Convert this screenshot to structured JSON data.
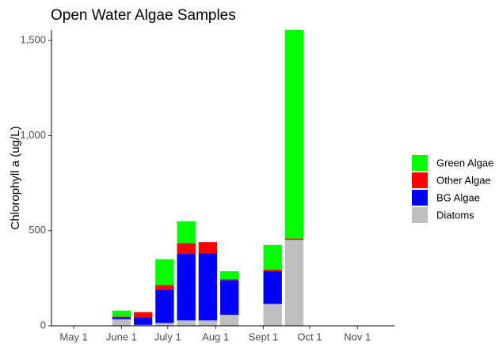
{
  "chart_data": {
    "type": "bar",
    "stacked": true,
    "title": "Open Water Algae Samples",
    "y_label": "Chlorophyll a (ug/L)",
    "x": [
      31,
      45,
      59,
      73,
      87,
      101,
      129,
      143
    ],
    "bar_width": 12,
    "xlim": [
      -14.4,
      208
    ],
    "xticks": [
      {
        "value": 0,
        "label": "May 1"
      },
      {
        "value": 31,
        "label": "June 1"
      },
      {
        "value": 61,
        "label": "July 1"
      },
      {
        "value": 92,
        "label": "Aug 1"
      },
      {
        "value": 123,
        "label": "Sept 1"
      },
      {
        "value": 153,
        "label": "Oct 1"
      },
      {
        "value": 184,
        "label": "Nov 1"
      }
    ],
    "ylim": [
      0,
      1555
    ],
    "yticks": [
      0,
      500,
      {
        "value": 1000,
        "label": "1,000"
      },
      {
        "value": 1500,
        "label": "1,500"
      }
    ],
    "grid": false,
    "legend": "right",
    "series": [
      {
        "name": "Diatoms",
        "color": "#bebebe",
        "values": [
          35,
          5,
          15,
          28,
          28,
          58,
          115,
          452
        ]
      },
      {
        "name": "BG Algae",
        "color": "#0000ff",
        "values": [
          10,
          40,
          175,
          350,
          354,
          182,
          172,
          1
        ]
      },
      {
        "name": "Other Algae",
        "color": "#ff0000",
        "values": [
          3,
          27,
          25,
          57,
          58,
          5,
          8,
          6
        ]
      },
      {
        "name": "Green Algae",
        "color": "#00ff00",
        "values": [
          32,
          0,
          135,
          115,
          0,
          42,
          130,
          1097
        ]
      }
    ]
  }
}
